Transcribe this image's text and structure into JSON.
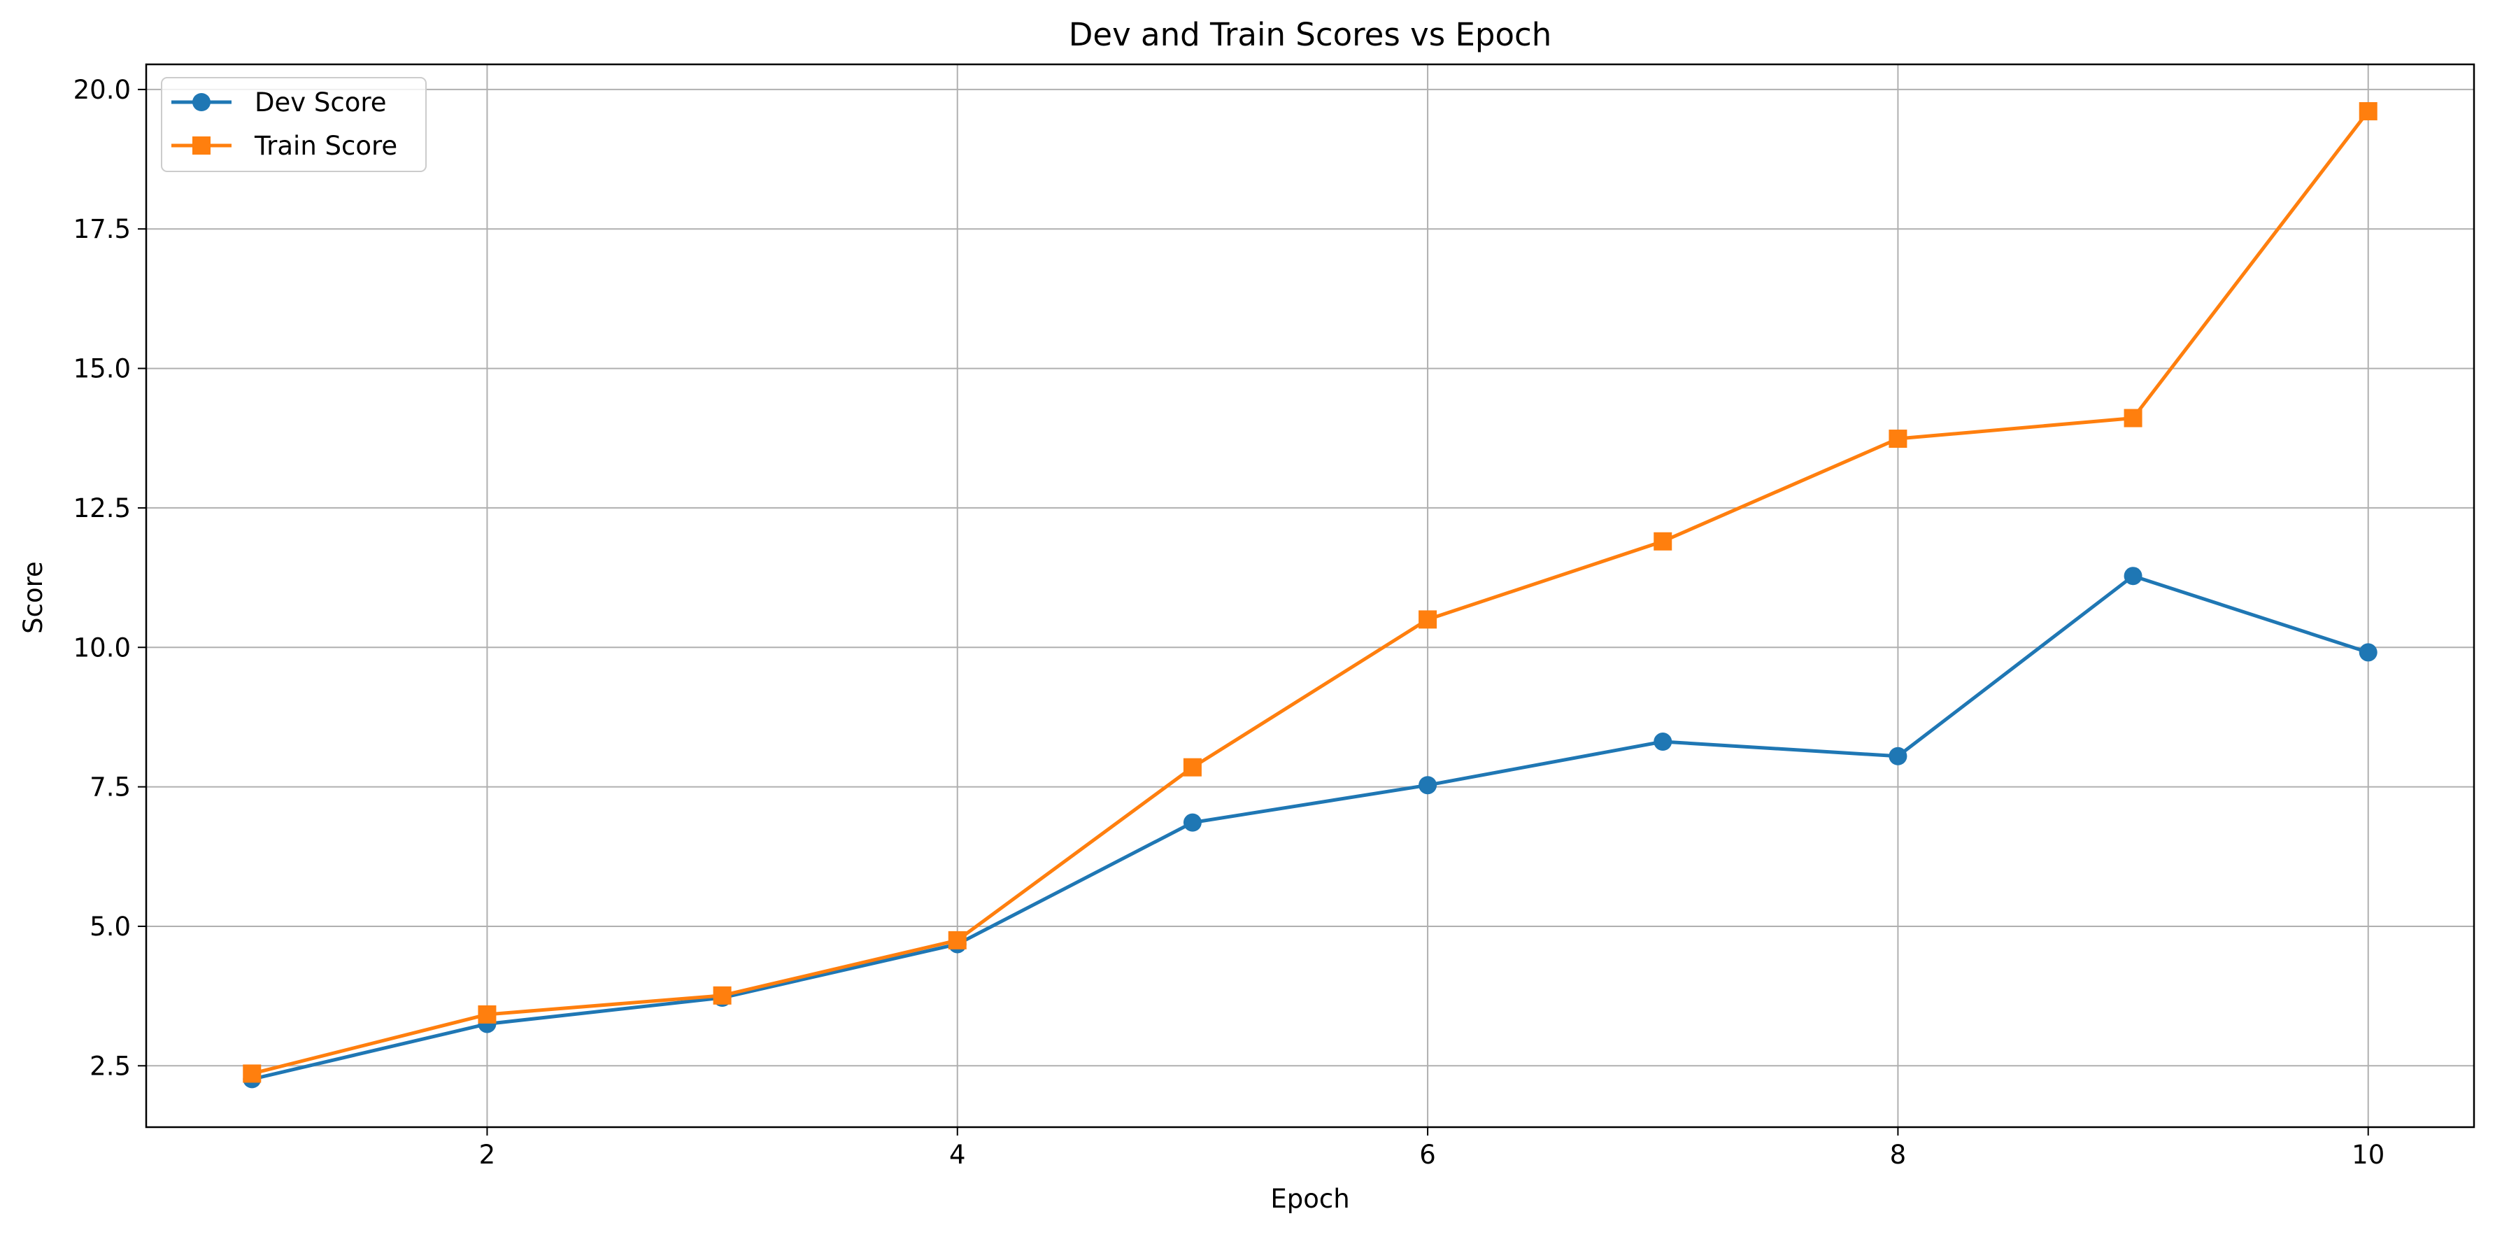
{
  "chart_data": {
    "type": "line",
    "title": "Dev and Train Scores vs Epoch",
    "xlabel": "Epoch",
    "ylabel": "Score",
    "xlim": [
      0.55,
      10.45
    ],
    "ylim": [
      1.4,
      20.45
    ],
    "xticks": [
      2,
      4,
      6,
      8,
      10
    ],
    "xtick_labels": [
      "2",
      "4",
      "6",
      "8",
      "10"
    ],
    "yticks": [
      2.5,
      5.0,
      7.5,
      10.0,
      12.5,
      15.0,
      17.5,
      20.0
    ],
    "ytick_labels": [
      "2.5",
      "5.0",
      "7.5",
      "10.0",
      "12.5",
      "15.0",
      "17.5",
      "20.0"
    ],
    "grid": true,
    "legend_position": "top-left",
    "x": [
      1,
      2,
      3,
      4,
      5,
      6,
      7,
      8,
      9,
      10
    ],
    "series": [
      {
        "name": "Dev Score",
        "marker": "circle",
        "color": "#1f77b4",
        "values": [
          2.26,
          3.25,
          3.72,
          4.68,
          6.86,
          7.53,
          8.31,
          8.05,
          11.28,
          9.91
        ]
      },
      {
        "name": "Train Score",
        "marker": "square",
        "color": "#ff7f0e",
        "values": [
          2.36,
          3.42,
          3.76,
          4.75,
          7.85,
          10.5,
          11.9,
          13.74,
          14.11,
          19.61
        ]
      }
    ]
  }
}
